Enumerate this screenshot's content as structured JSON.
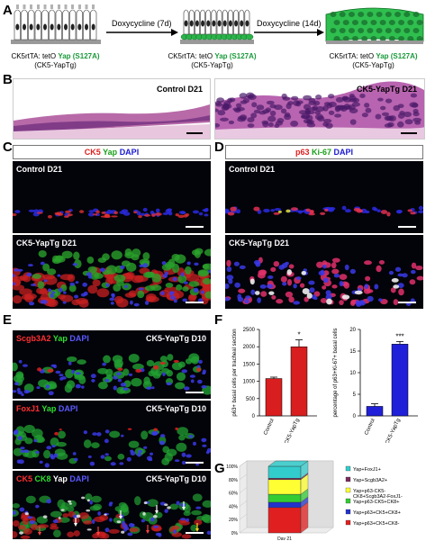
{
  "panels": {
    "A": {
      "label": "A",
      "arrow1": "Doxycycline (7d)",
      "arrow2": "Doxycycline (14d)",
      "genotype_line1_prefix": "CK5rtTA: tetO ",
      "genotype_line1_yap": "Yap (S127A)",
      "genotype_line2": "(CK5-YapTg)"
    },
    "B": {
      "label": "B",
      "left_title": "Control D21",
      "right_title": "CK5-YapTg  D21"
    },
    "C": {
      "label": "C",
      "legend": {
        "ck5": "CK5",
        "yap": "Yap",
        "dapi": "DAPI"
      },
      "top_title": "Control D21",
      "bottom_title": "CK5-YapTg  D21"
    },
    "D": {
      "label": "D",
      "legend": {
        "p63": "p63",
        "ki67": "Ki-67",
        "dapi": "DAPI"
      },
      "top_title": "Control D21",
      "bottom_title": "CK5-YapTg  D21"
    },
    "E": {
      "label": "E",
      "p1": {
        "m1": "Scgb3A2",
        "m2": "Yap",
        "m3": "DAPI",
        "title": "CK5-YapTg D10"
      },
      "p2": {
        "m1": "FoxJ1",
        "m2": "Yap",
        "m3": "DAPI",
        "title": "CK5-YapTg D10"
      },
      "p3": {
        "m1": "CK5",
        "m2": "CK8",
        "m3": "Yap",
        "m4": "DAPI",
        "title": "CK5-YapTg D10"
      }
    },
    "F": {
      "label": "F",
      "colors": {
        "control": "#d81e1e",
        "yaptg": "#2020d8"
      },
      "charts": [
        {
          "ylabel": "p63+ basal cells per tracheal section",
          "categories": [
            "Control",
            "CK5-YapTg"
          ],
          "ticks": [
            "0",
            "500",
            "1000",
            "1500",
            "2000",
            "2500"
          ],
          "sig": "*"
        },
        {
          "ylabel": "percentage of p63+Ki-67+ basal cells",
          "categories": [
            "Control",
            "CK5-YapTg"
          ],
          "ticks": [
            "0",
            "5",
            "10",
            "15",
            "20"
          ],
          "sig": "***"
        }
      ]
    },
    "G": {
      "label": "G",
      "ticks": [
        "0%",
        "20%",
        "40%",
        "60%",
        "80%",
        "100%"
      ],
      "xlabel": "Day 21",
      "legend": [
        {
          "label": "Yap+FoxJ1+",
          "color": "#33cccc"
        },
        {
          "label": "Yap+Scgb3A2+",
          "color": "#7a2a5a"
        },
        {
          "label": "Yap+p63-CK5-\nCK8+Scgb3A2-FoxJ1-",
          "color": "#ffff33"
        },
        {
          "label": "Yap+p63-CK5+CK8+",
          "color": "#33cc33"
        },
        {
          "label": "Yap+p63+CK5+CK8+",
          "color": "#2233cc"
        },
        {
          "label": "Yap+p63+CK5+CK8-",
          "color": "#e02020"
        }
      ]
    }
  },
  "chart_data": [
    {
      "type": "bar",
      "title": "",
      "categories": [
        "Control",
        "CK5-YapTg"
      ],
      "values": [
        1080,
        2000
      ],
      "errors": [
        40,
        200
      ],
      "ylabel": "p63+ basal cells per tracheal section",
      "xlabel": "",
      "ylim": [
        0,
        2500
      ],
      "colors": [
        "#d81e1e",
        "#d81e1e"
      ]
    },
    {
      "type": "bar",
      "title": "",
      "categories": [
        "Control",
        "CK5-YapTg"
      ],
      "values": [
        2.2,
        16.6
      ],
      "errors": [
        0.6,
        0.6
      ],
      "ylabel": "percentage of p63+Ki-67+ basal cells",
      "xlabel": "",
      "ylim": [
        0,
        20
      ],
      "colors": [
        "#2020d8",
        "#2020d8"
      ]
    },
    {
      "type": "bar",
      "title": "",
      "stacked": true,
      "categories": [
        "Day 21"
      ],
      "ylim": [
        0,
        100
      ],
      "series": [
        {
          "name": "Yap+p63+CK5+CK8-",
          "values": [
            38
          ]
        },
        {
          "name": "Yap+p63+CK5+CK8+",
          "values": [
            8
          ]
        },
        {
          "name": "Yap+p63-CK5+CK8+",
          "values": [
            12
          ]
        },
        {
          "name": "Yap+p63-CK5-\nCK8+Scgb3A2-FoxJ1-",
          "values": [
            22
          ]
        },
        {
          "name": "Yap+Scgb3A2+",
          "values": [
            2
          ]
        },
        {
          "name": "Yap+FoxJ1+",
          "values": [
            18
          ]
        }
      ]
    }
  ]
}
